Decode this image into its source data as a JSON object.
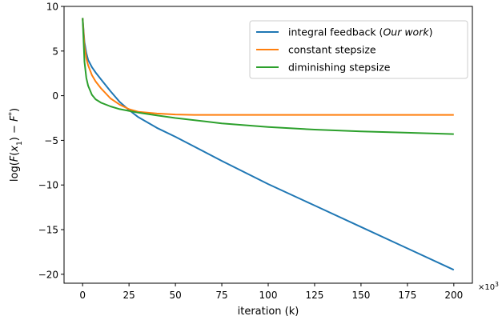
{
  "chart_data": {
    "type": "line",
    "title": "",
    "xlabel": "iteration (k)",
    "ylabel_parts": [
      "log(",
      "F",
      "(",
      "x",
      "1",
      ") − ",
      "F",
      "*",
      ")"
    ],
    "x_multiplier": "×10",
    "x_multiplier_exp": "3",
    "xlim": [
      -10,
      210
    ],
    "ylim": [
      -21,
      10
    ],
    "xticks": [
      0,
      25,
      50,
      75,
      100,
      125,
      150,
      175,
      200
    ],
    "yticks": [
      -20,
      -15,
      -10,
      -5,
      0,
      5,
      10
    ],
    "grid": false,
    "legend_placement": "top-right",
    "series": [
      {
        "name_parts": [
          "integral feedback (",
          "Our work",
          ")"
        ],
        "color": "#1f77b4",
        "x": [
          0,
          1,
          2,
          3,
          5,
          7,
          10,
          15,
          20,
          25,
          30,
          40,
          50,
          75,
          100,
          125,
          150,
          175,
          200
        ],
        "y": [
          8.7,
          6.0,
          4.8,
          4.0,
          3.2,
          2.6,
          1.8,
          0.5,
          -0.7,
          -1.6,
          -2.4,
          -3.6,
          -4.6,
          -7.3,
          -9.9,
          -12.3,
          -14.7,
          -17.1,
          -19.5
        ]
      },
      {
        "name": "constant stepsize",
        "color": "#ff7f0e",
        "x": [
          0,
          1,
          2,
          3,
          5,
          7,
          10,
          15,
          20,
          25,
          30,
          40,
          50,
          60,
          75,
          100,
          125,
          150,
          175,
          200
        ],
        "y": [
          8.7,
          5.5,
          4.2,
          3.4,
          2.3,
          1.6,
          0.8,
          -0.3,
          -1.0,
          -1.5,
          -1.8,
          -2.0,
          -2.1,
          -2.15,
          -2.15,
          -2.15,
          -2.15,
          -2.15,
          -2.15,
          -2.15
        ]
      },
      {
        "name": "diminishing stepsize",
        "color": "#2ca02c",
        "x": [
          0,
          1,
          2,
          3,
          5,
          7,
          10,
          15,
          20,
          25,
          30,
          40,
          50,
          75,
          100,
          125,
          150,
          175,
          200
        ],
        "y": [
          8.7,
          3.8,
          2.0,
          1.1,
          0.1,
          -0.4,
          -0.8,
          -1.2,
          -1.5,
          -1.7,
          -1.9,
          -2.2,
          -2.5,
          -3.1,
          -3.5,
          -3.8,
          -4.0,
          -4.15,
          -4.3
        ]
      }
    ]
  }
}
